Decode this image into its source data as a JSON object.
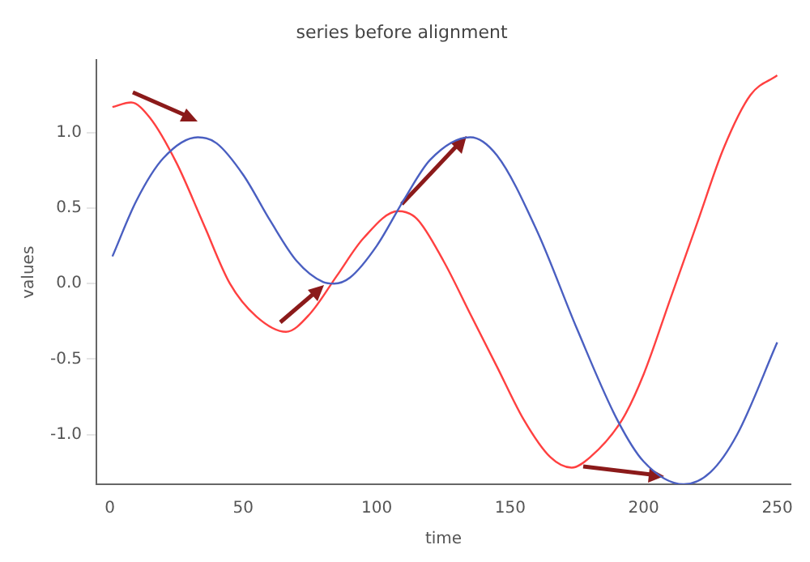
{
  "chart_data": {
    "type": "line",
    "title": "series before alignment",
    "xlabel": "time",
    "ylabel": "values",
    "xlim": [
      -5,
      255
    ],
    "xticks": [
      0,
      50,
      100,
      150,
      200,
      250
    ],
    "ylim": [
      -1.33,
      1.48
    ],
    "yticks": [
      {
        "value": -1,
        "label": "-1.0"
      },
      {
        "value": -0.5,
        "label": "-0.5"
      },
      {
        "value": 0,
        "label": "0.0"
      },
      {
        "value": 0.5,
        "label": "0.5"
      },
      {
        "value": 1,
        "label": "1.0"
      }
    ],
    "grid": false,
    "legend": false,
    "marker": "none",
    "line_style": "solid",
    "series": [
      {
        "color": "#4a5fc1",
        "x": [
          1,
          10,
          20,
          33,
          40,
          50,
          60,
          70,
          80,
          84,
          90,
          100,
          110,
          120,
          135,
          145,
          160,
          175,
          190,
          200,
          215,
          225,
          235,
          250
        ],
        "values": [
          0.18,
          0.55,
          0.83,
          0.97,
          0.93,
          0.72,
          0.42,
          0.15,
          0.01,
          0.0,
          0.04,
          0.25,
          0.55,
          0.82,
          0.97,
          0.85,
          0.35,
          -0.3,
          -0.9,
          -1.18,
          -1.33,
          -1.25,
          -1.0,
          -0.39
        ]
      },
      {
        "color": "#ff4040",
        "x": [
          1,
          8,
          15,
          25,
          35,
          45,
          55,
          66,
          75,
          85,
          95,
          108,
          115,
          125,
          135,
          145,
          155,
          165,
          173,
          180,
          192,
          200,
          210,
          220,
          230,
          240,
          250
        ],
        "values": [
          1.17,
          1.2,
          1.1,
          0.8,
          0.4,
          0.0,
          -0.22,
          -0.32,
          -0.2,
          0.05,
          0.3,
          0.48,
          0.43,
          0.15,
          -0.2,
          -0.55,
          -0.9,
          -1.15,
          -1.22,
          -1.15,
          -0.9,
          -0.6,
          -0.1,
          0.4,
          0.9,
          1.25,
          1.38
        ]
      }
    ]
  }
}
